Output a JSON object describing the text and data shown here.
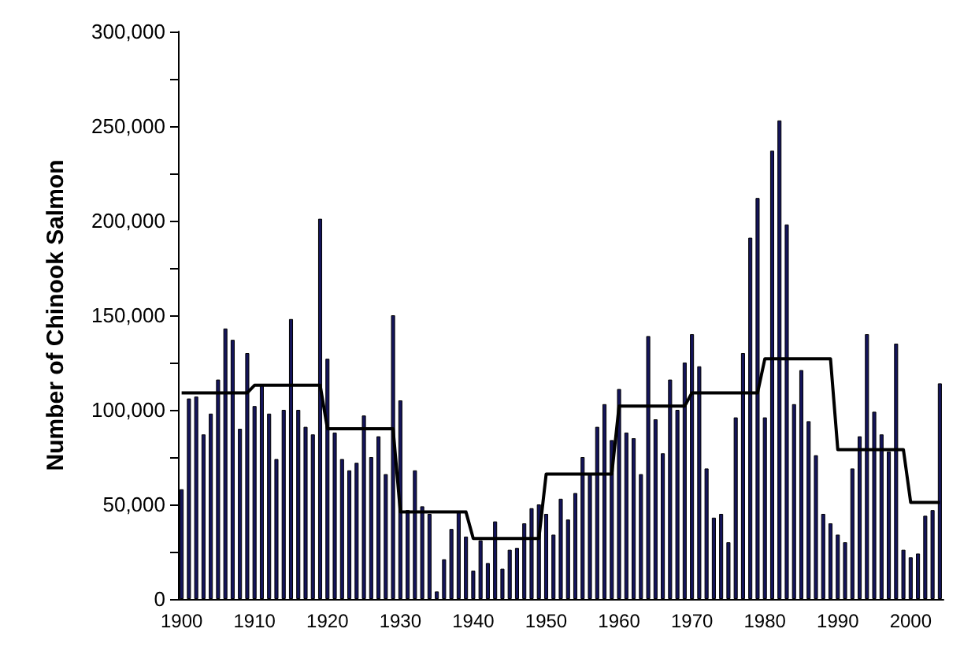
{
  "chart_data": {
    "type": "bar",
    "ylabel": "Number of Chinook Salmon",
    "categories": [
      "1900",
      null,
      null,
      null,
      null,
      null,
      null,
      null,
      null,
      null,
      "1910",
      null,
      null,
      null,
      null,
      null,
      null,
      null,
      null,
      null,
      "1920",
      null,
      null,
      null,
      null,
      null,
      null,
      null,
      null,
      null,
      "1930",
      null,
      null,
      null,
      null,
      null,
      null,
      null,
      null,
      null,
      "1940",
      null,
      null,
      null,
      null,
      null,
      null,
      null,
      null,
      null,
      "1950",
      null,
      null,
      null,
      null,
      null,
      null,
      null,
      null,
      null,
      "1960",
      null,
      null,
      null,
      null,
      null,
      null,
      null,
      null,
      null,
      "1970",
      null,
      null,
      null,
      null,
      null,
      null,
      null,
      null,
      null,
      "1980",
      null,
      null,
      null,
      null,
      null,
      null,
      null,
      null,
      null,
      "1990",
      null,
      null,
      null,
      null,
      null,
      null,
      null,
      null,
      null,
      "2000",
      null,
      null,
      null,
      null
    ],
    "series": [
      {
        "color": "#14145a",
        "values": [
          58000,
          106000,
          107000,
          87000,
          98000,
          116000,
          143000,
          137000,
          90000,
          130000,
          102000,
          113000,
          98000,
          74000,
          100000,
          148000,
          100000,
          91000,
          87000,
          201000,
          127000,
          88000,
          74000,
          68000,
          72000,
          97000,
          75000,
          86000,
          66000,
          150000,
          105000,
          47000,
          68000,
          49000,
          45000,
          4000,
          21000,
          37000,
          46000,
          33000,
          15000,
          31000,
          19000,
          41000,
          16000,
          26000,
          27000,
          40000,
          48000,
          50000,
          45000,
          34000,
          53000,
          42000,
          56000,
          75000,
          66000,
          91000,
          103000,
          84000,
          111000,
          88000,
          85000,
          66000,
          139000,
          95000,
          77000,
          116000,
          100000,
          125000,
          140000,
          123000,
          69000,
          43000,
          45000,
          30000,
          96000,
          130000,
          191000,
          212000,
          96000,
          237000,
          253000,
          198000,
          103000,
          121000,
          94000,
          76000,
          45000,
          40000,
          34000,
          30000,
          69000,
          86000,
          140000,
          99000,
          87000,
          78000,
          135000,
          26000,
          22000,
          24000,
          44000,
          47000,
          114000
        ]
      },
      {
        "type": "line",
        "color": "#000000",
        "values": [
          109000,
          109000,
          109000,
          109000,
          109000,
          109000,
          109000,
          109000,
          109000,
          109000,
          113000,
          113000,
          113000,
          113000,
          113000,
          113000,
          113000,
          113000,
          113000,
          113000,
          90000,
          90000,
          90000,
          90000,
          90000,
          90000,
          90000,
          90000,
          90000,
          90000,
          46000,
          46000,
          46000,
          46000,
          46000,
          46000,
          46000,
          46000,
          46000,
          46000,
          32000,
          32000,
          32000,
          32000,
          32000,
          32000,
          32000,
          32000,
          32000,
          32000,
          66000,
          66000,
          66000,
          66000,
          66000,
          66000,
          66000,
          66000,
          66000,
          66000,
          102000,
          102000,
          102000,
          102000,
          102000,
          102000,
          102000,
          102000,
          102000,
          102000,
          109000,
          109000,
          109000,
          109000,
          109000,
          109000,
          109000,
          109000,
          109000,
          109000,
          127000,
          127000,
          127000,
          127000,
          127000,
          127000,
          127000,
          127000,
          127000,
          127000,
          79000,
          79000,
          79000,
          79000,
          79000,
          79000,
          79000,
          79000,
          79000,
          79000,
          51000,
          51000,
          51000,
          51000,
          51000
        ]
      }
    ],
    "ylim": [
      0,
      300000
    ],
    "yticks": [
      0,
      {
        "value": 25000,
        "label": null
      },
      {
        "value": 50000,
        "label": "50,000"
      },
      {
        "value": 75000,
        "label": null
      },
      {
        "value": 100000,
        "label": "100,000"
      },
      {
        "value": 125000,
        "label": null
      },
      {
        "value": 150000,
        "label": "150,000"
      },
      {
        "value": 175000,
        "label": null
      },
      {
        "value": 200000,
        "label": "200,000"
      },
      {
        "value": 225000,
        "label": null
      },
      {
        "value": 250000,
        "label": "250,000"
      },
      {
        "value": 275000,
        "label": null
      },
      {
        "value": 300000,
        "label": "300,000"
      }
    ],
    "grid": false,
    "marker": "none",
    "line_style": "solid"
  }
}
